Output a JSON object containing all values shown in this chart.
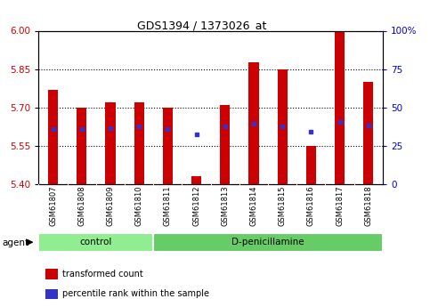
{
  "title": "GDS1394 / 1373026_at",
  "samples": [
    "GSM61807",
    "GSM61808",
    "GSM61809",
    "GSM61810",
    "GSM61811",
    "GSM61812",
    "GSM61813",
    "GSM61814",
    "GSM61815",
    "GSM61816",
    "GSM61817",
    "GSM61818"
  ],
  "transformed_count": [
    5.77,
    5.7,
    5.72,
    5.72,
    5.7,
    5.43,
    5.71,
    5.875,
    5.85,
    5.55,
    6.0,
    5.8
  ],
  "percentile_rank_vals": [
    5.615,
    5.615,
    5.62,
    5.625,
    5.615,
    5.595,
    5.625,
    5.635,
    5.625,
    5.605,
    5.645,
    5.63
  ],
  "ymin": 5.4,
  "ymax": 6.0,
  "y_ticks_left": [
    5.4,
    5.55,
    5.7,
    5.85,
    6.0
  ],
  "y_ticks_right_pct": [
    0,
    25,
    50,
    75,
    100
  ],
  "groups": [
    {
      "label": "control",
      "start": 0,
      "end": 4,
      "color": "#90EE90"
    },
    {
      "label": "D-penicillamine",
      "start": 4,
      "end": 12,
      "color": "#66CC66"
    }
  ],
  "bar_color": "#CC0000",
  "dot_color": "#3333CC",
  "bar_bottom": 5.4,
  "background_color": "#FFFFFF",
  "tick_color_left": "#CC0000",
  "tick_color_right": "#0000CC",
  "legend_items": [
    {
      "label": "transformed count",
      "color": "#CC0000",
      "marker": "s"
    },
    {
      "label": "percentile rank within the sample",
      "color": "#3333CC",
      "marker": "s"
    }
  ],
  "agent_label": "agent",
  "bar_width": 0.35
}
